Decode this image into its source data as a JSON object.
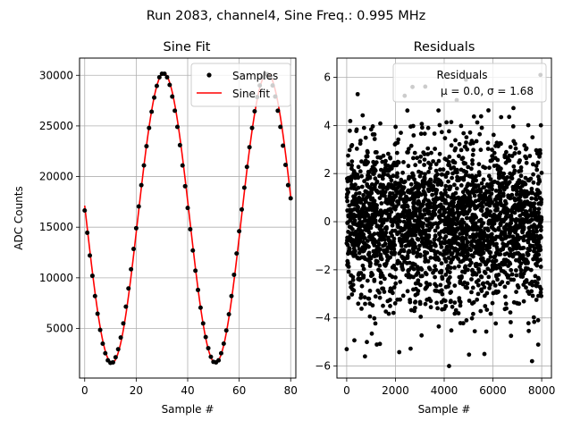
{
  "figure": {
    "suptitle": "Run 2083, channel4, Sine Freq.: 0.995 MHz"
  },
  "chart_data": [
    {
      "type": "line",
      "title": "Sine Fit",
      "xlabel": "Sample #",
      "ylabel": "ADC Counts",
      "xlim": [
        -2,
        82
      ],
      "ylim": [
        100,
        31700
      ],
      "xticks": [
        0,
        20,
        40,
        60,
        80
      ],
      "yticks": [
        5000,
        10000,
        15000,
        20000,
        25000,
        30000
      ],
      "grid": true,
      "legend_position": "upper right",
      "series": [
        {
          "name": "Samples",
          "style": "points",
          "color": "#000000",
          "x": [
            0,
            1,
            2,
            3,
            4,
            5,
            6,
            7,
            8,
            9,
            10,
            11,
            12,
            13,
            14,
            15,
            16,
            17,
            18,
            19,
            20,
            21,
            22,
            23,
            24,
            25,
            26,
            27,
            28,
            29,
            30,
            31,
            32,
            33,
            34,
            35,
            36,
            37,
            38,
            39,
            40,
            41,
            42,
            43,
            44,
            45,
            46,
            47,
            48,
            49,
            50,
            51,
            52,
            53,
            54,
            55,
            56,
            57,
            58,
            59,
            60,
            61,
            62,
            63,
            64,
            65,
            66,
            67,
            68,
            69,
            70,
            71,
            72,
            73,
            74,
            75,
            76,
            77,
            78,
            79,
            80
          ],
          "y": [
            16650,
            14450,
            12200,
            10200,
            8200,
            6450,
            4850,
            3500,
            2550,
            1850,
            1600,
            1650,
            2150,
            2950,
            4100,
            5500,
            7150,
            8950,
            10850,
            12850,
            14900,
            17050,
            19150,
            21100,
            23000,
            24800,
            26400,
            27800,
            28950,
            29800,
            30150,
            30150,
            29800,
            29050,
            27900,
            26500,
            24900,
            23100,
            21100,
            19050,
            16900,
            14800,
            12700,
            10700,
            8800,
            7050,
            5500,
            4150,
            3050,
            2200,
            1700,
            1650,
            1850,
            2550,
            3500,
            4800,
            6400,
            8200,
            10300,
            12400,
            14600,
            16750,
            18900,
            20950,
            22900,
            24800,
            26450,
            27850,
            29000,
            29800,
            30150,
            30100,
            29750,
            29000,
            27900,
            26500,
            24900,
            23050,
            21150,
            19150,
            17850
          ]
        },
        {
          "name": "Sine fit",
          "style": "line",
          "color": "#ff0000",
          "amplitude": 14300,
          "offset": 15900,
          "period_samples": 40.2,
          "phase_peak_at": 30.7,
          "x_range": [
            0,
            80
          ]
        }
      ]
    },
    {
      "type": "scatter",
      "title": "Residuals",
      "xlabel": "Sample #",
      "ylabel": "",
      "xlim": [
        -400,
        8400
      ],
      "ylim": [
        -6.5,
        6.8
      ],
      "xticks": [
        0,
        2000,
        4000,
        6000,
        8000
      ],
      "yticks": [
        -6,
        -4,
        -2,
        0,
        2,
        4,
        6
      ],
      "grid": true,
      "legend_position": "upper right",
      "series": [
        {
          "name": "Residuals",
          "color": "#000000",
          "n_points": 8000,
          "x_range": [
            0,
            8000
          ],
          "mean": 0.0,
          "sigma": 1.68,
          "min": -6.0,
          "max": 6.1,
          "marked_points": [
            {
              "x": 4200,
              "y": -6.0
            },
            {
              "x": 7950,
              "y": 6.1
            },
            {
              "x": 450,
              "y": 5.3
            },
            {
              "x": 2700,
              "y": 5.6
            },
            {
              "x": 750,
              "y": -5.6
            },
            {
              "x": 5650,
              "y": -5.5
            },
            {
              "x": 0,
              "y": -5.3
            }
          ]
        }
      ],
      "legend_text": {
        "label": "Residuals",
        "stats": "μ = 0.0, σ = 1.68"
      }
    }
  ]
}
